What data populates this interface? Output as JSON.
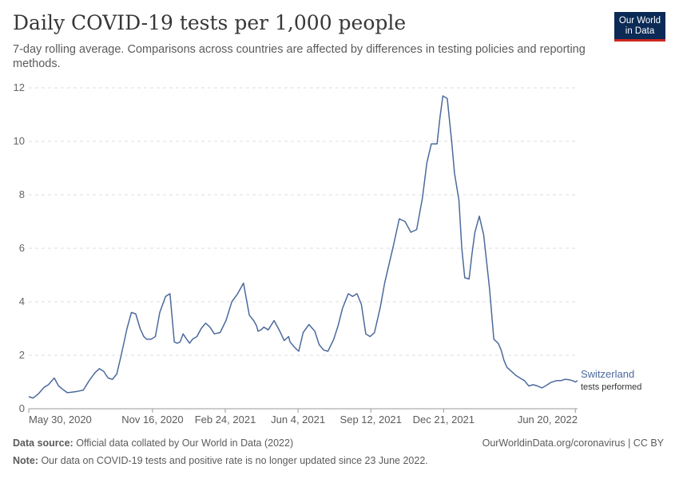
{
  "header": {
    "title": "Daily COVID-19 tests per 1,000 people",
    "subtitle": "7-day rolling average. Comparisons across countries are affected by differences in testing policies and reporting methods.",
    "logo_line1": "Our World",
    "logo_line2": "in Data"
  },
  "footer": {
    "source_label": "Data source:",
    "source_text": "Official data collated by Our World in Data (2022)",
    "url_license": "OurWorldinData.org/coronavirus | CC BY",
    "note_label": "Note:",
    "note_text": "Our data on COVID-19 tests and positive rate is no longer updated since 23 June 2022."
  },
  "colors": {
    "series": "#4c6a9c",
    "grid": "#dddddd",
    "axis": "#999999",
    "logo_bg": "#0b2a55",
    "logo_accent": "#ce261e"
  },
  "chart_data": {
    "type": "line",
    "title": "Daily COVID-19 tests per 1,000 people",
    "xlabel": "",
    "ylabel": "",
    "ylim": [
      0,
      12
    ],
    "yticks": [
      "0",
      "2",
      "4",
      "6",
      "8",
      "10",
      "12"
    ],
    "xticks": [
      "May 30, 2020",
      "Nov 16, 2020",
      "Feb 24, 2021",
      "Jun 4, 2021",
      "Sep 12, 2021",
      "Dec 21, 2021",
      "Jun 20, 2022"
    ],
    "grid": "horizontal dashed",
    "legend": "end-of-line label",
    "series": [
      {
        "name": "Switzerland",
        "label_line2": "tests performed",
        "x": [
          "2020-05-30",
          "2020-06-05",
          "2020-06-12",
          "2020-06-20",
          "2020-06-26",
          "2020-07-04",
          "2020-07-10",
          "2020-07-16",
          "2020-07-22",
          "2020-07-28",
          "2020-08-05",
          "2020-08-13",
          "2020-08-21",
          "2020-08-29",
          "2020-09-04",
          "2020-09-10",
          "2020-09-16",
          "2020-09-22",
          "2020-09-28",
          "2020-10-04",
          "2020-10-12",
          "2020-10-18",
          "2020-10-24",
          "2020-10-30",
          "2020-11-04",
          "2020-11-08",
          "2020-11-14",
          "2020-11-20",
          "2020-11-26",
          "2020-12-04",
          "2020-12-10",
          "2020-12-16",
          "2020-12-20",
          "2020-12-24",
          "2020-12-28",
          "2021-01-02",
          "2021-01-06",
          "2021-01-10",
          "2021-01-16",
          "2021-01-22",
          "2021-01-28",
          "2021-02-03",
          "2021-02-09",
          "2021-02-17",
          "2021-02-25",
          "2021-03-05",
          "2021-03-13",
          "2021-03-21",
          "2021-03-29",
          "2021-04-04",
          "2021-04-08",
          "2021-04-10",
          "2021-04-14",
          "2021-04-18",
          "2021-04-24",
          "2021-05-02",
          "2021-05-10",
          "2021-05-16",
          "2021-05-22",
          "2021-05-24",
          "2021-05-30",
          "2021-06-05",
          "2021-06-11",
          "2021-06-19",
          "2021-06-27",
          "2021-07-03",
          "2021-07-09",
          "2021-07-15",
          "2021-07-23",
          "2021-07-29",
          "2021-08-04",
          "2021-08-12",
          "2021-08-18",
          "2021-08-24",
          "2021-08-30",
          "2021-09-05",
          "2021-09-11",
          "2021-09-17",
          "2021-09-25",
          "2021-10-01",
          "2021-10-07",
          "2021-10-13",
          "2021-10-21",
          "2021-10-29",
          "2021-11-06",
          "2021-11-14",
          "2021-11-22",
          "2021-11-28",
          "2021-12-04",
          "2021-12-12",
          "2021-12-16",
          "2021-12-20",
          "2021-12-26",
          "2022-01-01",
          "2022-01-05",
          "2022-01-11",
          "2022-01-15",
          "2022-01-19",
          "2022-01-25",
          "2022-01-29",
          "2022-02-02",
          "2022-02-08",
          "2022-02-14",
          "2022-02-22",
          "2022-02-28",
          "2022-03-06",
          "2022-03-10",
          "2022-03-14",
          "2022-03-18",
          "2022-03-24",
          "2022-03-30",
          "2022-04-05",
          "2022-04-11",
          "2022-04-17",
          "2022-04-23",
          "2022-04-29",
          "2022-05-05",
          "2022-05-11",
          "2022-05-17",
          "2022-05-25",
          "2022-05-31",
          "2022-06-06",
          "2022-06-12",
          "2022-06-16",
          "2022-06-20",
          "2022-06-23"
        ],
        "values": [
          0.45,
          0.4,
          0.55,
          0.8,
          0.9,
          1.15,
          0.85,
          0.72,
          0.6,
          0.62,
          0.65,
          0.7,
          1.05,
          1.35,
          1.5,
          1.4,
          1.15,
          1.1,
          1.3,
          2.0,
          3.0,
          3.6,
          3.55,
          3.0,
          2.7,
          2.6,
          2.6,
          2.7,
          3.6,
          4.2,
          4.3,
          2.5,
          2.45,
          2.5,
          2.8,
          2.6,
          2.45,
          2.6,
          2.7,
          3.0,
          3.2,
          3.05,
          2.8,
          2.85,
          3.3,
          4.0,
          4.3,
          4.7,
          3.5,
          3.3,
          3.1,
          2.9,
          2.95,
          3.05,
          2.95,
          3.3,
          2.9,
          2.55,
          2.7,
          2.5,
          2.3,
          2.15,
          2.85,
          3.15,
          2.9,
          2.4,
          2.2,
          2.15,
          2.6,
          3.1,
          3.75,
          4.3,
          4.2,
          4.3,
          3.9,
          2.8,
          2.7,
          2.85,
          3.8,
          4.7,
          5.4,
          6.1,
          7.1,
          7.0,
          6.6,
          6.7,
          7.9,
          9.2,
          9.9,
          9.9,
          10.9,
          11.7,
          11.6,
          10.0,
          8.8,
          7.8,
          6.0,
          4.9,
          4.85,
          5.8,
          6.6,
          7.2,
          6.5,
          4.5,
          2.6,
          2.45,
          2.2,
          1.8,
          1.55,
          1.4,
          1.25,
          1.15,
          1.05,
          0.85,
          0.9,
          0.85,
          0.78,
          0.87,
          0.98,
          1.05,
          1.05,
          1.1,
          1.08,
          1.05,
          1.0,
          1.05
        ]
      }
    ]
  }
}
